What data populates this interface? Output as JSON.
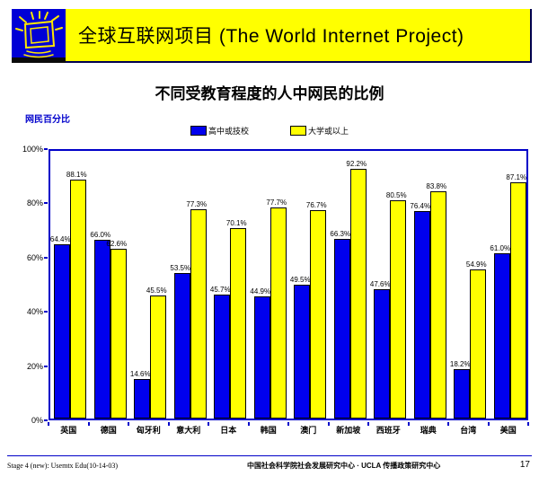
{
  "banner": {
    "title": "全球互联网项目 (The World Internet Project)",
    "bg_color": "#FFFF00",
    "logo_color": "#0000D6"
  },
  "slide_title": "不同受教育程度的人中网民的比例",
  "chart_data": {
    "type": "bar",
    "title": "不同受教育程度的人中网民的比例",
    "ylabel": "网民百分比",
    "xlabel": "",
    "ylim": [
      0,
      100
    ],
    "yticks": [
      100,
      80,
      60,
      40,
      20,
      0
    ],
    "ytick_suffix": "%",
    "grid": false,
    "legend_position": "top",
    "categories": [
      "英国",
      "德国",
      "匈牙利",
      "意大利",
      "日本",
      "韩国",
      "澳门",
      "新加坡",
      "西班牙",
      "瑞典",
      "台湾",
      "美国"
    ],
    "series": [
      {
        "name": "高中或技校",
        "color": "#0000EE",
        "values": [
          64.4,
          66.0,
          14.6,
          53.5,
          45.7,
          44.9,
          49.5,
          66.3,
          47.6,
          76.4,
          18.2,
          61.0
        ]
      },
      {
        "name": "大学或以上",
        "color": "#FFFF00",
        "values": [
          88.1,
          62.6,
          45.5,
          77.3,
          70.1,
          77.7,
          76.7,
          92.2,
          80.5,
          83.8,
          54.9,
          87.1
        ]
      }
    ],
    "value_label_suffix": "%"
  },
  "footer": {
    "left": "Stage 4 (new): Usemtx Edu(10-14-03)",
    "center": "中国社会科学院社会发展研究中心 · UCLA 传播政策研究中心",
    "page": "17"
  }
}
